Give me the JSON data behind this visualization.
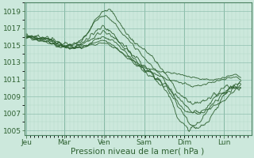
{
  "xlabel": "Pression niveau de la mer( hPa )",
  "bg_color": "#cce8dc",
  "grid_color_minor": "#b0d8c8",
  "grid_color_major": "#90c0b0",
  "line_color": "#2d6030",
  "ylim": [
    1004.5,
    1020.0
  ],
  "xlim": [
    -0.05,
    5.35
  ],
  "yticks": [
    1005,
    1007,
    1009,
    1011,
    1013,
    1015,
    1017,
    1019
  ],
  "days": [
    "Jeu",
    "Mar",
    "Ven",
    "Sam",
    "Dim",
    "Lun"
  ],
  "day_positions": [
    0.0,
    0.9,
    1.85,
    2.8,
    3.75,
    4.7
  ],
  "vline_positions": [
    0.0,
    0.9,
    1.85,
    2.8,
    3.75,
    4.7
  ],
  "fontsize_tick": 6.5,
  "fontsize_xlabel": 7.5,
  "members": [
    {
      "ctrl_x": [
        0.0,
        0.15,
        0.4,
        0.9,
        1.4,
        1.85,
        2.1,
        2.3,
        2.55,
        2.8,
        3.1,
        3.4,
        3.75,
        4.0,
        4.2,
        4.5,
        4.7,
        4.9,
        5.1
      ],
      "ctrl_y": [
        1016.2,
        1016.1,
        1016.0,
        1015.2,
        1016.0,
        1019.2,
        1018.5,
        1017.0,
        1015.5,
        1014.5,
        1013.0,
        1011.0,
        1008.8,
        1008.2,
        1008.5,
        1009.2,
        1009.5,
        1010.2,
        1010.5
      ],
      "noise": 0.25
    },
    {
      "ctrl_x": [
        0.0,
        0.15,
        0.4,
        0.9,
        1.4,
        1.85,
        2.1,
        2.3,
        2.55,
        2.8,
        3.1,
        3.4,
        3.75,
        4.0,
        4.2,
        4.5,
        4.7,
        4.9,
        5.1
      ],
      "ctrl_y": [
        1016.2,
        1016.0,
        1015.9,
        1015.0,
        1016.2,
        1018.5,
        1017.5,
        1016.2,
        1015.0,
        1013.5,
        1012.0,
        1010.0,
        1007.5,
        1007.0,
        1007.2,
        1008.0,
        1008.5,
        1009.5,
        1010.0
      ],
      "noise": 0.2
    },
    {
      "ctrl_x": [
        0.0,
        0.15,
        0.4,
        0.9,
        1.4,
        1.85,
        2.1,
        2.3,
        2.55,
        2.8,
        3.1,
        3.4,
        3.75,
        3.9,
        4.0,
        4.2,
        4.5,
        4.7,
        4.9,
        5.1
      ],
      "ctrl_y": [
        1016.1,
        1016.0,
        1015.8,
        1015.0,
        1015.5,
        1017.0,
        1016.0,
        1015.0,
        1013.5,
        1012.2,
        1011.0,
        1009.0,
        1005.5,
        1005.2,
        1005.5,
        1006.5,
        1008.5,
        1009.5,
        1010.0,
        1010.2
      ],
      "noise": 0.3
    },
    {
      "ctrl_x": [
        0.0,
        0.15,
        0.4,
        0.9,
        1.4,
        1.85,
        2.3,
        2.55,
        2.8,
        3.1,
        3.4,
        3.75,
        3.9,
        4.1,
        4.3,
        4.5,
        4.7,
        4.9,
        5.1
      ],
      "ctrl_y": [
        1016.0,
        1015.9,
        1015.7,
        1015.0,
        1015.3,
        1016.5,
        1015.0,
        1013.8,
        1012.5,
        1011.2,
        1009.5,
        1006.8,
        1005.8,
        1005.5,
        1006.0,
        1007.5,
        1009.0,
        1009.8,
        1010.0
      ],
      "noise": 0.3
    },
    {
      "ctrl_x": [
        0.0,
        0.15,
        0.4,
        0.9,
        1.4,
        1.85,
        2.3,
        2.55,
        2.8,
        3.1,
        3.4,
        3.75,
        3.9,
        4.1,
        4.3,
        4.7,
        4.9,
        5.1
      ],
      "ctrl_y": [
        1016.0,
        1015.8,
        1015.6,
        1014.8,
        1015.0,
        1016.0,
        1014.5,
        1013.2,
        1012.0,
        1011.0,
        1009.8,
        1008.2,
        1007.5,
        1007.2,
        1007.8,
        1010.0,
        1010.2,
        1010.5
      ],
      "noise": 0.25
    },
    {
      "ctrl_x": [
        0.0,
        0.15,
        0.4,
        0.9,
        1.4,
        1.85,
        2.3,
        2.55,
        2.8,
        3.1,
        3.4,
        3.75,
        4.0,
        4.3,
        4.7,
        4.9,
        5.1
      ],
      "ctrl_y": [
        1016.0,
        1015.8,
        1015.5,
        1014.8,
        1014.9,
        1015.5,
        1014.0,
        1013.0,
        1012.2,
        1011.5,
        1011.0,
        1010.5,
        1010.2,
        1010.5,
        1011.0,
        1011.2,
        1011.0
      ],
      "noise": 0.15
    },
    {
      "ctrl_x": [
        0.0,
        0.15,
        0.4,
        0.9,
        1.4,
        1.85,
        2.3,
        2.55,
        2.8,
        3.1,
        3.4,
        3.75,
        4.0,
        4.3,
        4.7,
        4.9,
        5.1
      ],
      "ctrl_y": [
        1016.0,
        1015.8,
        1015.5,
        1014.8,
        1014.8,
        1015.2,
        1014.0,
        1013.2,
        1012.5,
        1012.0,
        1011.8,
        1011.5,
        1011.2,
        1011.0,
        1011.2,
        1011.5,
        1011.2
      ],
      "noise": 0.12
    }
  ]
}
